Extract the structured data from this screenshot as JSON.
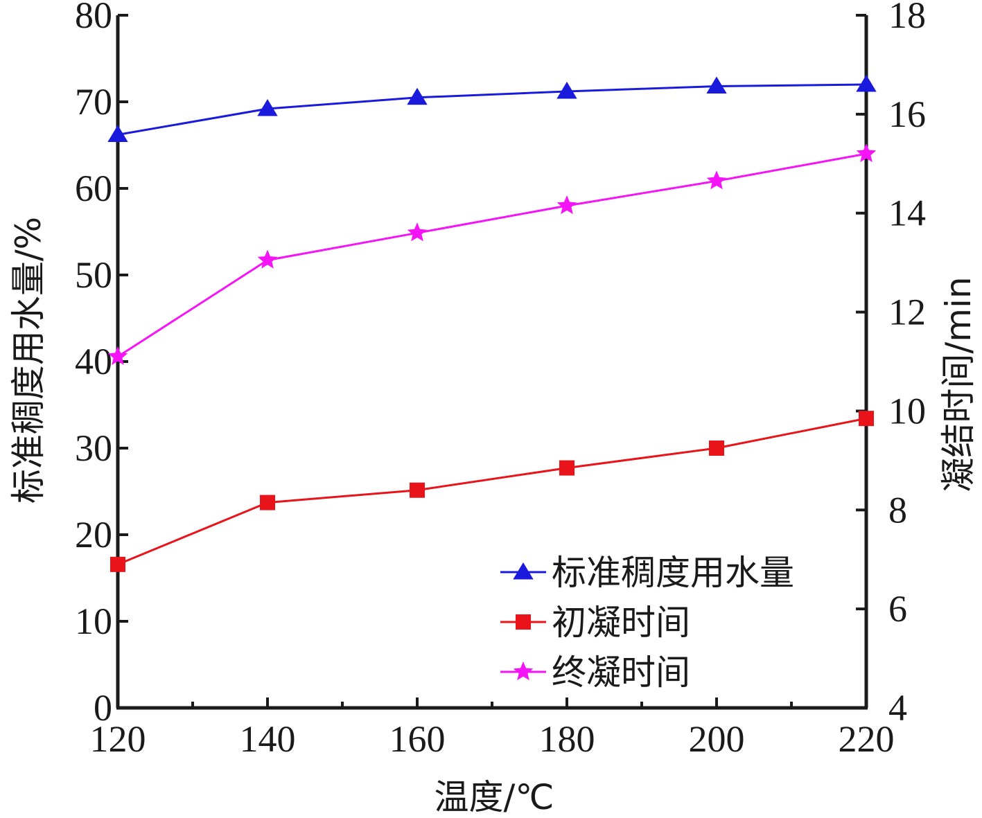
{
  "chart_data": {
    "type": "line",
    "x": [
      120,
      140,
      160,
      180,
      200,
      220
    ],
    "xlabel": "温度/℃",
    "xlim": [
      120,
      220
    ],
    "x_ticks": [
      "120",
      "140",
      "160",
      "180",
      "200",
      "220"
    ],
    "ylabel_left": "标准稠度用水量/%",
    "ylim_left": [
      0,
      80
    ],
    "y_ticks_left": [
      "0",
      "10",
      "20",
      "30",
      "40",
      "50",
      "60",
      "70",
      "80"
    ],
    "ylabel_right": "凝结时间/min",
    "ylim_right": [
      4,
      18
    ],
    "y_ticks_right": [
      "4",
      "6",
      "8",
      "10",
      "12",
      "14",
      "16",
      "18"
    ],
    "grid": false,
    "legend_position": "bottom-right",
    "series": [
      {
        "name": "标准稠度用水量",
        "axis": "left",
        "marker": "triangle",
        "color": "#1a1adc",
        "values": [
          66.2,
          69.2,
          70.5,
          71.2,
          71.8,
          72.0
        ]
      },
      {
        "name": "初凝时间",
        "axis": "right",
        "marker": "square",
        "color": "#e8141a",
        "values": [
          6.9,
          8.15,
          8.4,
          8.85,
          9.25,
          9.85
        ]
      },
      {
        "name": "终凝时间",
        "axis": "right",
        "marker": "star",
        "color": "#f514f5",
        "values": [
          11.1,
          13.05,
          13.6,
          14.15,
          14.65,
          15.2
        ]
      }
    ]
  }
}
